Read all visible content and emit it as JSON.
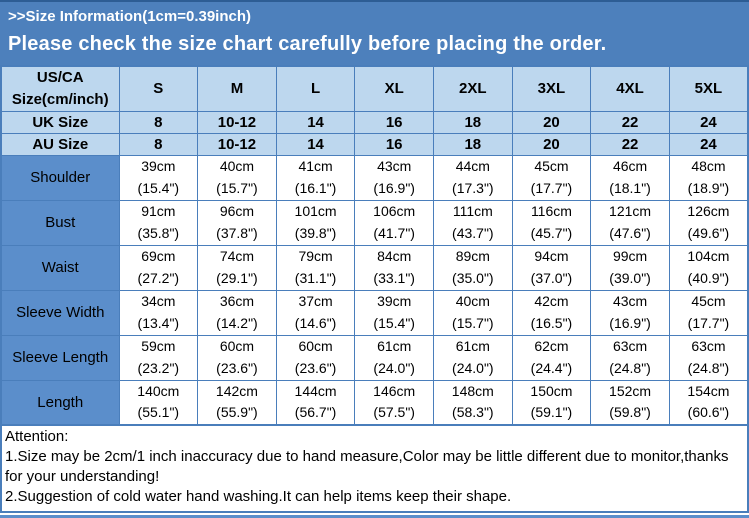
{
  "banner": {
    "line1": ">>Size Information(1cm=0.39inch)",
    "line2": "Please check the size chart carefully before placing the order."
  },
  "table": {
    "corner_label_line1": "US/CA",
    "corner_label_line2": "Size(cm/inch)",
    "size_columns": [
      "S",
      "M",
      "L",
      "XL",
      "2XL",
      "3XL",
      "4XL",
      "5XL"
    ],
    "uk_row": {
      "label": "UK Size",
      "values": [
        "8",
        "10-12",
        "14",
        "16",
        "18",
        "20",
        "22",
        "24"
      ]
    },
    "au_row": {
      "label": "AU Size",
      "values": [
        "8",
        "10-12",
        "14",
        "16",
        "18",
        "20",
        "22",
        "24"
      ]
    },
    "measurement_rows": [
      {
        "label": "Shoulder",
        "cm": [
          "39cm",
          "40cm",
          "41cm",
          "43cm",
          "44cm",
          "45cm",
          "46cm",
          "48cm"
        ],
        "inch": [
          "(15.4\")",
          "(15.7\")",
          "(16.1\")",
          "(16.9\")",
          "(17.3\")",
          "(17.7\")",
          "(18.1\")",
          "(18.9\")"
        ]
      },
      {
        "label": "Bust",
        "cm": [
          "91cm",
          "96cm",
          "101cm",
          "106cm",
          "111cm",
          "116cm",
          "121cm",
          "126cm"
        ],
        "inch": [
          "(35.8\")",
          "(37.8\")",
          "(39.8\")",
          "(41.7\")",
          "(43.7\")",
          "(45.7\")",
          "(47.6\")",
          "(49.6\")"
        ]
      },
      {
        "label": "Waist",
        "cm": [
          "69cm",
          "74cm",
          "79cm",
          "84cm",
          "89cm",
          "94cm",
          "99cm",
          "104cm"
        ],
        "inch": [
          "(27.2\")",
          "(29.1\")",
          "(31.1\")",
          "(33.1\")",
          "(35.0\")",
          "(37.0\")",
          "(39.0\")",
          "(40.9\")"
        ]
      },
      {
        "label": "Sleeve Width",
        "cm": [
          "34cm",
          "36cm",
          "37cm",
          "39cm",
          "40cm",
          "42cm",
          "43cm",
          "45cm"
        ],
        "inch": [
          "(13.4\")",
          "(14.2\")",
          "(14.6\")",
          "(15.4\")",
          "(15.7\")",
          "(16.5\")",
          "(16.9\")",
          "(17.7\")"
        ]
      },
      {
        "label": "Sleeve Length",
        "cm": [
          "59cm",
          "60cm",
          "60cm",
          "61cm",
          "61cm",
          "62cm",
          "63cm",
          "63cm"
        ],
        "inch": [
          "(23.2\")",
          "(23.6\")",
          "(23.6\")",
          "(24.0\")",
          "(24.0\")",
          "(24.4\")",
          "(24.8\")",
          "(24.8\")"
        ]
      },
      {
        "label": "Length",
        "cm": [
          "140cm",
          "142cm",
          "144cm",
          "146cm",
          "148cm",
          "150cm",
          "152cm",
          "154cm"
        ],
        "inch": [
          "(55.1\")",
          "(55.9\")",
          "(56.7\")",
          "(57.5\")",
          "(58.3\")",
          "(59.1\")",
          "(59.8\")",
          "(60.6\")"
        ]
      }
    ]
  },
  "attention": {
    "title": "Attention:",
    "lines": [
      "1.Size may be 2cm/1 inch inaccuracy due to hand measure,Color may be little different due to monitor,thanks for your understanding!",
      "2.Suggestion of cold water hand washing.It can help items keep their shape."
    ]
  },
  "colors": {
    "banner_bg": "#4d80bc",
    "header_row_bg": "#bdd7ee",
    "label_cell_bg": "#5b8ecb",
    "border": "#4a7ebb",
    "cell_bg": "#ffffff",
    "banner_text": "#ffffff",
    "table_text": "#000000"
  }
}
